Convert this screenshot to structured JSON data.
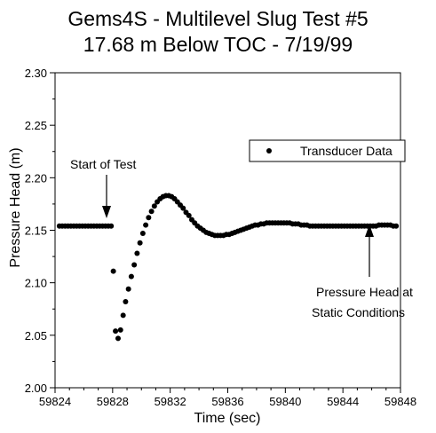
{
  "chart_data": {
    "type": "scatter",
    "title": "Gems4S - Multilevel Slug Test #5",
    "subtitle": "17.68 m Below TOC - 7/19/99",
    "xlabel": "Time (sec)",
    "ylabel": "Pressure Head (m)",
    "xlim": [
      59824,
      59848
    ],
    "ylim": [
      2.0,
      2.3
    ],
    "x_ticks": [
      "59824",
      "59828",
      "59832",
      "59836",
      "59840",
      "59844",
      "59848"
    ],
    "y_ticks": [
      "2.00",
      "2.05",
      "2.10",
      "2.15",
      "2.20",
      "2.25",
      "2.30"
    ],
    "legend": {
      "label": "Transducer Data",
      "position": "top-right"
    },
    "annotations": {
      "start": [
        "Start of Test"
      ],
      "static": [
        "Pressure Head at",
        "Static Conditions"
      ]
    },
    "series": [
      {
        "name": "Transducer Data",
        "color": "#000000",
        "x": [
          59824.3,
          59824.5,
          59824.7,
          59824.9,
          59825.1,
          59825.3,
          59825.5,
          59825.7,
          59825.9,
          59826.1,
          59826.3,
          59826.5,
          59826.7,
          59826.9,
          59827.1,
          59827.3,
          59827.5,
          59827.7,
          59827.9,
          59828.05,
          59828.2,
          59828.38,
          59828.55,
          59828.73,
          59828.9,
          59829.1,
          59829.3,
          59829.5,
          59829.7,
          59829.9,
          59830.1,
          59830.3,
          59830.5,
          59830.7,
          59830.9,
          59831.1,
          59831.3,
          59831.5,
          59831.7,
          59831.9,
          59832.1,
          59832.3,
          59832.5,
          59832.7,
          59832.9,
          59833.1,
          59833.3,
          59833.5,
          59833.7,
          59833.9,
          59834.1,
          59834.3,
          59834.5,
          59834.7,
          59834.9,
          59835.1,
          59835.3,
          59835.5,
          59835.7,
          59835.9,
          59836.1,
          59836.3,
          59836.5,
          59836.7,
          59836.9,
          59837.1,
          59837.3,
          59837.5,
          59837.7,
          59837.9,
          59838.1,
          59838.3,
          59838.5,
          59838.7,
          59838.9,
          59839.1,
          59839.3,
          59839.5,
          59839.7,
          59839.9,
          59840.1,
          59840.3,
          59840.5,
          59840.7,
          59840.9,
          59841.1,
          59841.3,
          59841.5,
          59841.7,
          59841.9,
          59842.1,
          59842.3,
          59842.5,
          59842.7,
          59842.9,
          59843.1,
          59843.3,
          59843.5,
          59843.7,
          59843.9,
          59844.1,
          59844.3,
          59844.5,
          59844.7,
          59844.9,
          59845.1,
          59845.3,
          59845.5,
          59845.7,
          59845.9,
          59846.1,
          59846.3,
          59846.5,
          59846.7,
          59846.9,
          59847.1,
          59847.3,
          59847.5,
          59847.7
        ],
        "y": [
          2.154,
          2.154,
          2.154,
          2.154,
          2.154,
          2.154,
          2.154,
          2.154,
          2.154,
          2.154,
          2.154,
          2.154,
          2.154,
          2.154,
          2.154,
          2.154,
          2.154,
          2.154,
          2.154,
          2.111,
          2.054,
          2.047,
          2.055,
          2.069,
          2.082,
          2.094,
          2.106,
          2.117,
          2.128,
          2.138,
          2.147,
          2.155,
          2.162,
          2.168,
          2.173,
          2.177,
          2.18,
          2.182,
          2.183,
          2.183,
          2.182,
          2.18,
          2.177,
          2.174,
          2.171,
          2.167,
          2.164,
          2.16,
          2.157,
          2.154,
          2.152,
          2.15,
          2.148,
          2.147,
          2.146,
          2.145,
          2.145,
          2.145,
          2.145,
          2.146,
          2.146,
          2.147,
          2.148,
          2.149,
          2.15,
          2.151,
          2.152,
          2.153,
          2.154,
          2.155,
          2.155,
          2.156,
          2.156,
          2.157,
          2.157,
          2.157,
          2.157,
          2.157,
          2.157,
          2.157,
          2.157,
          2.157,
          2.156,
          2.156,
          2.156,
          2.155,
          2.155,
          2.155,
          2.154,
          2.154,
          2.154,
          2.154,
          2.154,
          2.154,
          2.154,
          2.154,
          2.154,
          2.154,
          2.154,
          2.154,
          2.154,
          2.154,
          2.154,
          2.154,
          2.154,
          2.154,
          2.154,
          2.154,
          2.154,
          2.154,
          2.154,
          2.154,
          2.155,
          2.155,
          2.155,
          2.155,
          2.155,
          2.154,
          2.154
        ]
      }
    ]
  }
}
